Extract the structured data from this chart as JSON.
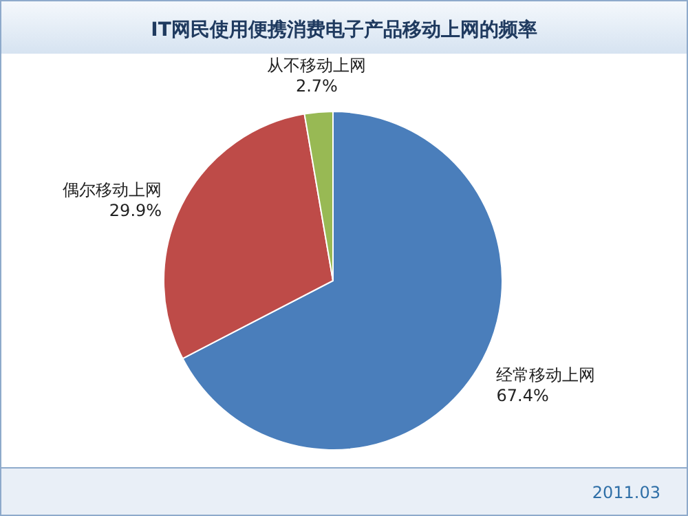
{
  "chart_data": {
    "type": "pie",
    "title": "IT网民使用便携消费电子产品移动上网的频率",
    "categories": [
      "经常移动上网",
      "偶尔移动上网",
      "从不移动上网"
    ],
    "values": [
      67.4,
      29.9,
      2.7
    ],
    "value_labels": [
      "67.4%",
      "29.9%",
      "2.7%"
    ],
    "colors": [
      "#4a7ebb",
      "#be4b48",
      "#98b954"
    ],
    "annotations": [
      "2011.03"
    ]
  }
}
